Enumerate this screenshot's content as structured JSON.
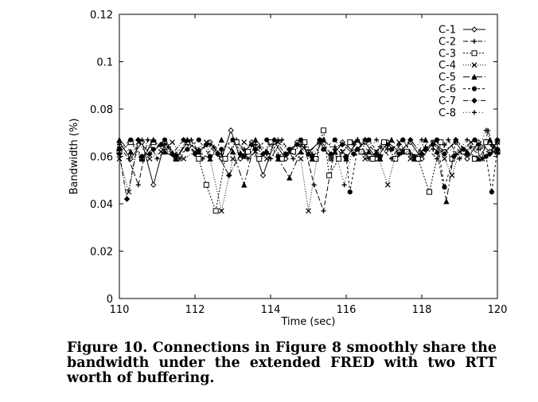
{
  "chart_data": {
    "type": "line",
    "xlabel": "Time (sec)",
    "ylabel": "Bandwidth (%)",
    "xlim": [
      110,
      120
    ],
    "ylim": [
      0,
      0.12
    ],
    "xticks": [
      "110",
      "112",
      "114",
      "116",
      "118",
      "120"
    ],
    "yticks": [
      "0",
      "0.02",
      "0.04",
      "0.06",
      "0.08",
      "0.1",
      "0.12"
    ],
    "legend_position": "top-right",
    "grid": false,
    "series": [
      {
        "name": "C-1",
        "dash": "",
        "marker": "diamond-open",
        "x": [
          110.0,
          110.3,
          110.6,
          110.9,
          111.2,
          111.5,
          111.8,
          112.1,
          112.4,
          112.7,
          112.95,
          113.2,
          113.5,
          113.8,
          114.1,
          114.4,
          114.7,
          115.0,
          115.3,
          115.6,
          115.9,
          116.2,
          116.5,
          116.8,
          117.1,
          117.4,
          117.7,
          118.0,
          118.3,
          118.6,
          118.9,
          119.2,
          119.5,
          119.8,
          120.0
        ],
        "values": [
          0.066,
          0.059,
          0.066,
          0.048,
          0.066,
          0.059,
          0.066,
          0.062,
          0.066,
          0.059,
          0.071,
          0.059,
          0.066,
          0.052,
          0.066,
          0.059,
          0.066,
          0.062,
          0.066,
          0.059,
          0.066,
          0.062,
          0.066,
          0.059,
          0.066,
          0.062,
          0.066,
          0.059,
          0.066,
          0.062,
          0.066,
          0.059,
          0.066,
          0.062,
          0.066
        ]
      },
      {
        "name": "C-2",
        "dash": "6,3",
        "marker": "plus",
        "x": [
          110.0,
          110.25,
          110.5,
          110.75,
          111.0,
          111.3,
          111.6,
          111.9,
          112.2,
          112.5,
          112.8,
          113.1,
          113.4,
          113.7,
          114.0,
          114.3,
          114.6,
          114.9,
          115.15,
          115.4,
          115.7,
          116.0,
          116.3,
          116.6,
          116.9,
          117.2,
          117.5,
          117.8,
          118.1,
          118.4,
          118.7,
          119.0,
          119.3,
          119.6,
          119.75,
          119.9,
          120.0
        ],
        "values": [
          0.064,
          0.059,
          0.048,
          0.067,
          0.059,
          0.064,
          0.059,
          0.067,
          0.059,
          0.064,
          0.059,
          0.067,
          0.059,
          0.064,
          0.059,
          0.067,
          0.059,
          0.064,
          0.048,
          0.037,
          0.064,
          0.059,
          0.067,
          0.059,
          0.064,
          0.059,
          0.067,
          0.059,
          0.064,
          0.059,
          0.067,
          0.059,
          0.064,
          0.059,
          0.071,
          0.064,
          0.067
        ]
      },
      {
        "name": "C-3",
        "dash": "2,2",
        "marker": "square-open",
        "x": [
          110.0,
          110.3,
          110.6,
          110.9,
          111.2,
          111.5,
          111.8,
          112.1,
          112.3,
          112.55,
          112.8,
          113.1,
          113.4,
          113.7,
          114.0,
          114.3,
          114.6,
          114.9,
          115.2,
          115.4,
          115.55,
          115.8,
          116.1,
          116.4,
          116.7,
          117.0,
          117.3,
          117.6,
          117.9,
          118.2,
          118.5,
          118.8,
          119.1,
          119.4,
          119.7,
          120.0
        ],
        "values": [
          0.062,
          0.066,
          0.059,
          0.066,
          0.062,
          0.059,
          0.066,
          0.059,
          0.048,
          0.037,
          0.059,
          0.066,
          0.062,
          0.059,
          0.066,
          0.059,
          0.062,
          0.066,
          0.059,
          0.071,
          0.052,
          0.059,
          0.066,
          0.062,
          0.059,
          0.066,
          0.059,
          0.062,
          0.059,
          0.045,
          0.066,
          0.059,
          0.062,
          0.059,
          0.066,
          0.062
        ]
      },
      {
        "name": "C-4",
        "dash": "1,2",
        "marker": "x",
        "x": [
          110.0,
          110.25,
          110.5,
          110.8,
          111.1,
          111.4,
          111.7,
          112.0,
          112.3,
          112.7,
          113.0,
          113.3,
          113.6,
          113.9,
          114.2,
          114.5,
          114.8,
          115.0,
          115.3,
          115.6,
          115.9,
          116.2,
          116.5,
          116.8,
          117.1,
          117.4,
          117.7,
          118.0,
          118.3,
          118.6,
          118.8,
          119.0,
          119.3,
          119.6,
          119.9,
          120.0
        ],
        "values": [
          0.059,
          0.045,
          0.066,
          0.059,
          0.062,
          0.066,
          0.059,
          0.062,
          0.066,
          0.037,
          0.059,
          0.066,
          0.062,
          0.059,
          0.066,
          0.062,
          0.059,
          0.037,
          0.066,
          0.059,
          0.062,
          0.066,
          0.059,
          0.062,
          0.048,
          0.066,
          0.059,
          0.062,
          0.066,
          0.059,
          0.052,
          0.062,
          0.066,
          0.059,
          0.062,
          0.066
        ]
      },
      {
        "name": "C-5",
        "dash": "8,3,2,3",
        "marker": "triangle",
        "x": [
          110.0,
          110.3,
          110.6,
          110.9,
          111.2,
          111.5,
          111.8,
          112.1,
          112.4,
          112.7,
          113.0,
          113.3,
          113.6,
          113.9,
          114.2,
          114.5,
          114.8,
          115.1,
          115.4,
          115.7,
          116.0,
          116.3,
          116.6,
          116.9,
          117.2,
          117.5,
          117.8,
          118.1,
          118.4,
          118.65,
          118.9,
          119.2,
          119.5,
          119.8,
          120.0
        ],
        "values": [
          0.067,
          0.062,
          0.059,
          0.067,
          0.062,
          0.059,
          0.067,
          0.062,
          0.059,
          0.067,
          0.062,
          0.048,
          0.067,
          0.062,
          0.059,
          0.051,
          0.062,
          0.059,
          0.067,
          0.062,
          0.059,
          0.067,
          0.062,
          0.059,
          0.067,
          0.062,
          0.059,
          0.067,
          0.062,
          0.041,
          0.067,
          0.062,
          0.059,
          0.067,
          0.062
        ]
      },
      {
        "name": "C-6",
        "dash": "3,3",
        "marker": "circle",
        "x": [
          110.0,
          110.3,
          110.6,
          110.9,
          111.2,
          111.5,
          111.8,
          112.1,
          112.4,
          112.7,
          113.0,
          113.3,
          113.6,
          113.9,
          114.2,
          114.5,
          114.8,
          115.1,
          115.4,
          115.7,
          116.0,
          116.1,
          116.3,
          116.6,
          116.9,
          117.2,
          117.5,
          117.8,
          118.1,
          118.4,
          118.6,
          118.85,
          119.1,
          119.4,
          119.7,
          119.85,
          120.0
        ],
        "values": [
          0.063,
          0.067,
          0.06,
          0.063,
          0.067,
          0.06,
          0.063,
          0.067,
          0.06,
          0.063,
          0.067,
          0.06,
          0.063,
          0.067,
          0.06,
          0.063,
          0.067,
          0.06,
          0.063,
          0.067,
          0.06,
          0.045,
          0.063,
          0.067,
          0.06,
          0.063,
          0.067,
          0.06,
          0.063,
          0.067,
          0.047,
          0.06,
          0.063,
          0.067,
          0.06,
          0.045,
          0.063
        ]
      },
      {
        "name": "C-7",
        "dash": "6,2,1,2",
        "marker": "diamond",
        "x": [
          110.0,
          110.2,
          110.5,
          110.8,
          111.1,
          111.4,
          111.7,
          112.0,
          112.3,
          112.6,
          112.9,
          113.2,
          113.5,
          113.8,
          114.1,
          114.4,
          114.7,
          115.0,
          115.3,
          115.6,
          115.9,
          116.2,
          116.5,
          116.8,
          117.1,
          117.4,
          117.7,
          118.0,
          118.3,
          118.6,
          118.9,
          119.2,
          119.5,
          119.8,
          120.0
        ],
        "values": [
          0.061,
          0.042,
          0.067,
          0.061,
          0.065,
          0.061,
          0.067,
          0.061,
          0.065,
          0.061,
          0.052,
          0.061,
          0.065,
          0.061,
          0.067,
          0.061,
          0.065,
          0.061,
          0.067,
          0.061,
          0.065,
          0.061,
          0.067,
          0.061,
          0.065,
          0.061,
          0.067,
          0.061,
          0.065,
          0.061,
          0.067,
          0.061,
          0.065,
          0.061,
          0.067
        ]
      },
      {
        "name": "C-8",
        "dash": "1,3",
        "marker": "plus",
        "x": [
          110.0,
          110.3,
          110.6,
          110.9,
          111.2,
          111.5,
          111.8,
          112.1,
          112.4,
          112.7,
          113.0,
          113.3,
          113.6,
          113.9,
          114.2,
          114.5,
          114.8,
          115.1,
          115.4,
          115.7,
          115.95,
          116.2,
          116.5,
          116.8,
          117.1,
          117.4,
          117.7,
          118.0,
          118.3,
          118.6,
          118.9,
          119.2,
          119.5,
          119.7,
          119.85,
          120.0
        ],
        "values": [
          0.065,
          0.061,
          0.067,
          0.063,
          0.065,
          0.061,
          0.067,
          0.063,
          0.065,
          0.061,
          0.067,
          0.063,
          0.065,
          0.061,
          0.067,
          0.063,
          0.065,
          0.061,
          0.067,
          0.063,
          0.048,
          0.065,
          0.061,
          0.067,
          0.063,
          0.065,
          0.061,
          0.067,
          0.063,
          0.065,
          0.061,
          0.067,
          0.063,
          0.071,
          0.065,
          0.061
        ]
      }
    ]
  },
  "caption": "Figure 10. Connections in Figure 8 smoothly share the bandwidth under the extended FRED with two RTT worth of buffering."
}
